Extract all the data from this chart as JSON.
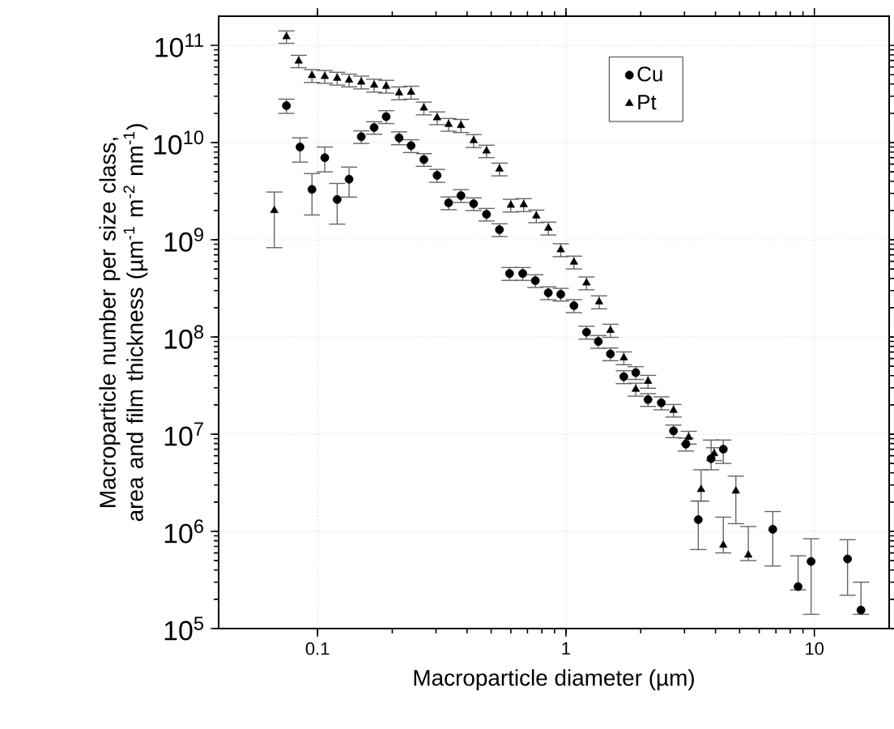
{
  "chart_data": {
    "type": "scatter",
    "xlabel": "Macroparticle diameter (µm)",
    "ylabel": "Macroparticle number per size class, area and film thickness (µm$^{-1}$ m$^{-2}$ nm$^{-1}$)",
    "log": "xy",
    "grid": true,
    "legend": "top right",
    "xlim": [
      0.04,
      20
    ],
    "ylim": [
      100000,
      200000000000
    ],
    "xticks": [
      0.1,
      1,
      10
    ],
    "yticks": [
      {
        "value": 100000,
        "label": "10$^{5}$"
      },
      {
        "value": 1000000,
        "label": "10$^{6}$"
      },
      {
        "value": 10000000,
        "label": "10$^{7}$"
      },
      {
        "value": 100000000,
        "label": "10$^{8}$"
      },
      {
        "value": 1000000000,
        "label": "10$^{9}$"
      },
      {
        "value": 10000000000,
        "label": "10$^{10}$"
      },
      {
        "value": 100000000000,
        "label": "10$^{11}$"
      }
    ],
    "series": [
      {
        "name": "Cu",
        "color": "#000000",
        "marker": "circle",
        "x": [
          0.075,
          0.085,
          0.095,
          0.107,
          0.12,
          0.134,
          0.15,
          0.169,
          0.189,
          0.213,
          0.238,
          0.268,
          0.303,
          0.337,
          0.378,
          0.425,
          0.479,
          0.54,
          0.593,
          0.67,
          0.753,
          0.849,
          0.953,
          1.077,
          1.21,
          1.35,
          1.51,
          1.71,
          1.91,
          2.14,
          2.42,
          2.71,
          3.04,
          3.41,
          3.84,
          4.3,
          6.8,
          8.6,
          9.7,
          13.6,
          15.4
        ],
        "values": [
          24000000000.0,
          9000000000.0,
          3300000000.0,
          7000000000.0,
          2600000000.0,
          4200000000.0,
          11500000000.0,
          14300000000.0,
          18500000000.0,
          11200000000.0,
          9300000000.0,
          6700000000.0,
          4600000000.0,
          2400000000.0,
          2850000000.0,
          2350000000.0,
          1830000000.0,
          1270000000.0,
          450000000.0,
          450000000.0,
          380000000.0,
          285000000.0,
          275000000.0,
          210000000.0,
          112000000.0,
          90000000.0,
          67000000.0,
          39000000.0,
          43000000.0,
          22700000.0,
          21000000.0,
          10800000.0,
          7900000.0,
          1320000.0,
          5600000.0,
          7000000.0,
          1050000.0,
          270000.0,
          490000.0,
          520000.0,
          155000.0
        ],
        "errors": [
          [
            20000000000.0,
            28000000000.0
          ],
          [
            6300000000.0,
            11200000000.0
          ],
          [
            1800000000.0,
            4800000000.0
          ],
          [
            5000000000.0,
            9000000000.0
          ],
          [
            1450000000.0,
            3800000000.0
          ],
          [
            2750000000.0,
            5600000000.0
          ],
          1700000000.0,
          2100000000.0,
          2800000000.0,
          1700000000.0,
          1400000000.0,
          1000000000.0,
          700000000.0,
          360000000.0,
          430000000.0,
          350000000.0,
          270000000.0,
          190000000.0,
          68000000.0,
          68000000.0,
          57000000.0,
          43000000.0,
          41000000.0,
          32000000.0,
          17000000.0,
          13500000.0,
          10000000.0,
          5900000.0,
          6500000.0,
          3400000.0,
          3200000.0,
          1600000.0,
          1200000.0,
          [
            650000.0,
            2050000.0
          ],
          [
            4300000.0,
            8700000.0
          ],
          [
            5000000.0,
            8700000.0
          ],
          [
            440000.0,
            1600000.0
          ],
          [
            250000.0,
            560000.0
          ],
          [
            140000.0,
            840000.0
          ],
          [
            220000.0,
            820000.0
          ],
          [
            140000.0,
            300000.0
          ]
        ]
      },
      {
        "name": "Pt",
        "color": "#000000",
        "marker": "triangle",
        "x": [
          0.067,
          0.075,
          0.084,
          0.095,
          0.107,
          0.12,
          0.134,
          0.15,
          0.169,
          0.189,
          0.213,
          0.238,
          0.268,
          0.303,
          0.337,
          0.378,
          0.425,
          0.479,
          0.54,
          0.6,
          0.676,
          0.76,
          0.85,
          0.953,
          1.077,
          1.21,
          1.36,
          1.51,
          1.71,
          1.91,
          2.14,
          2.71,
          3.12,
          3.5,
          3.95,
          4.3,
          4.83,
          5.42
        ],
        "values": [
          2000000000.0,
          123000000000.0,
          69000000000.0,
          49000000000.0,
          48000000000.0,
          46000000000.0,
          44000000000.0,
          42000000000.0,
          39000000000.0,
          38000000000.0,
          32500000000.0,
          33000000000.0,
          22700000000.0,
          18000000000.0,
          15400000000.0,
          15000000000.0,
          10500000000.0,
          8200000000.0,
          5350000000.0,
          2270000000.0,
          2300000000.0,
          1760000000.0,
          1320000000.0,
          790000000.0,
          590000000.0,
          360000000.0,
          230000000.0,
          117000000.0,
          61000000.0,
          29000000.0,
          35000000.0,
          17600000.0,
          9300000.0,
          2700000.0,
          6300000.0,
          720000.0,
          2600000.0,
          570000.0
        ],
        "errors": [
          [
            830000000.0,
            3100000000.0
          ],
          18000000000.0,
          10000000000.0,
          7400000000.0,
          7200000000.0,
          6900000000.0,
          6600000000.0,
          6300000000.0,
          5900000000.0,
          5700000000.0,
          4900000000.0,
          5000000000.0,
          3400000000.0,
          2700000000.0,
          2300000000.0,
          2300000000.0,
          1600000000.0,
          1200000000.0,
          800000000.0,
          340000000.0,
          350000000.0,
          260000000.0,
          200000000.0,
          120000000.0,
          89000000.0,
          54000000.0,
          35000000.0,
          18000000.0,
          9200000.0,
          4400000.0,
          5300000.0,
          2600000.0,
          1400000.0,
          [
            2050000.0,
            4300000.0
          ],
          950000.0,
          [
            600000.0,
            1400000.0
          ],
          [
            1200000.0,
            3700000.0
          ],
          [
            500000.0,
            1120000.0
          ]
        ]
      }
    ]
  }
}
